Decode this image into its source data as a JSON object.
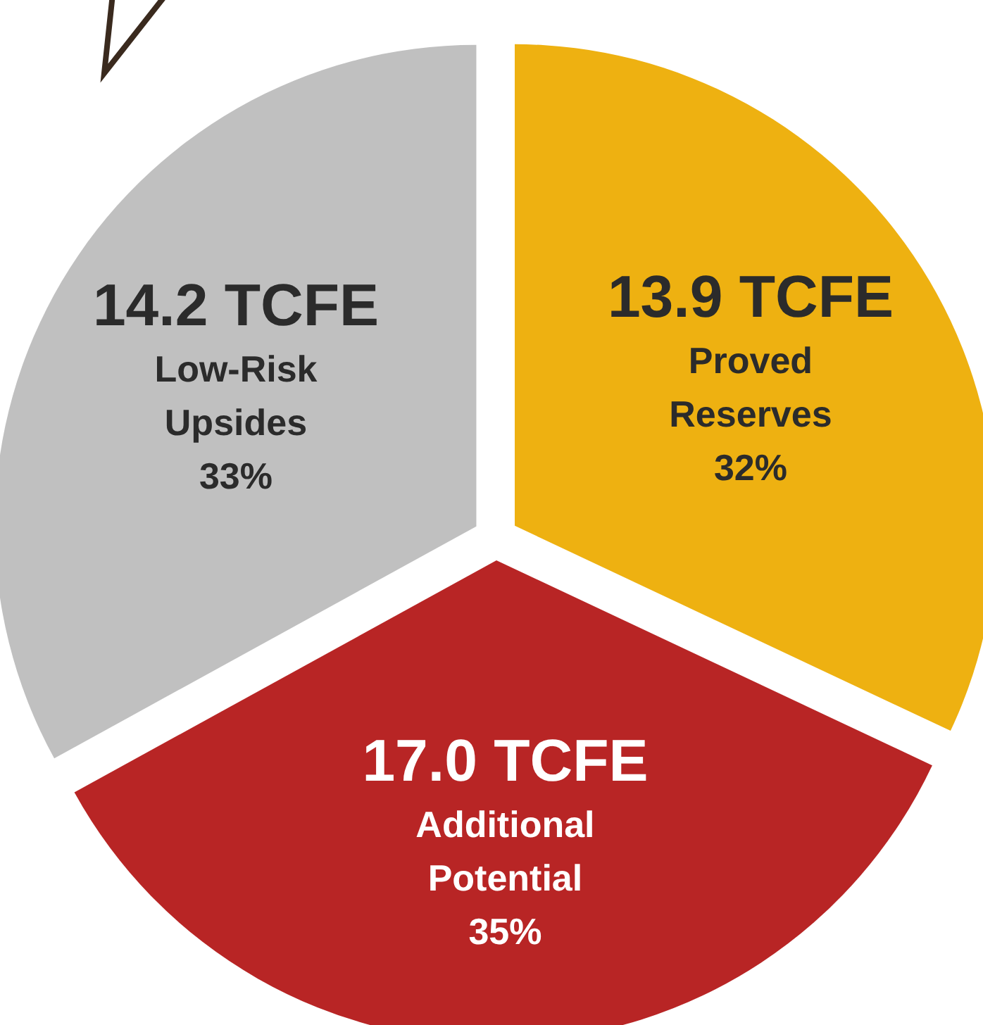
{
  "chart_data": {
    "type": "pie",
    "categories": [
      "Proved Reserves",
      "Additional Potential",
      "Low-Risk Upsides"
    ],
    "values": [
      32,
      35,
      33
    ],
    "value_labels": [
      "13.9 TCFE\n32%",
      "17.0 TCFE\n35%",
      "14.2 TCFE\n33%"
    ],
    "colors": [
      "#eeb111",
      "#b82525",
      "#c0c0c0"
    ],
    "legend": false
  }
}
